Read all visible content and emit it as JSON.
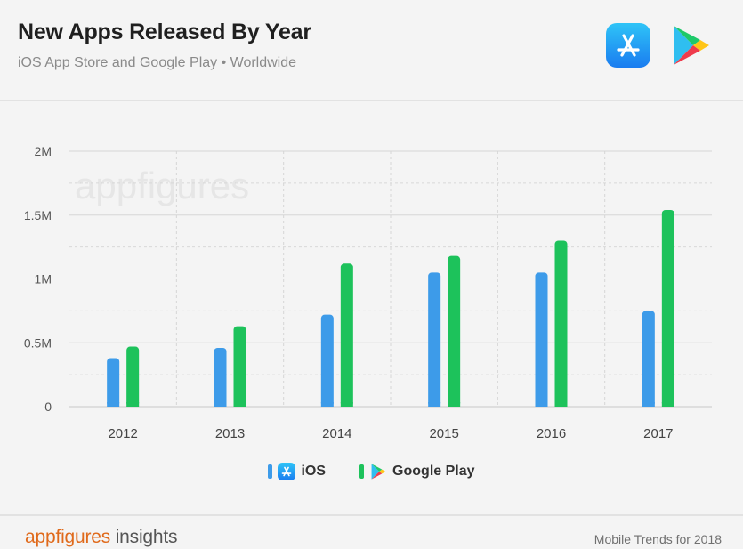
{
  "header": {
    "title": "New Apps Released By Year",
    "subtitle": "iOS App Store and Google Play • Worldwide"
  },
  "icons": {
    "app_store": "app-store-icon",
    "google_play": "google-play-icon"
  },
  "chart_data": {
    "type": "bar",
    "categories": [
      "2012",
      "2013",
      "2014",
      "2015",
      "2016",
      "2017"
    ],
    "series": [
      {
        "name": "iOS",
        "color": "#3d9be9",
        "values": [
          380000,
          460000,
          720000,
          1050000,
          1050000,
          750000
        ]
      },
      {
        "name": "Google Play",
        "color": "#1dc25b",
        "values": [
          470000,
          630000,
          1120000,
          1180000,
          1300000,
          1540000
        ]
      }
    ],
    "yticks": [
      "0",
      "0.5M",
      "1M",
      "1.5M",
      "2M"
    ],
    "ylim": [
      0,
      2000000
    ],
    "grid": true,
    "watermark": "appfigures",
    "legend_position": "bottom"
  },
  "footer": {
    "brand": "appfigures",
    "brand_suffix": " insights",
    "note": "Mobile Trends for 2018"
  }
}
